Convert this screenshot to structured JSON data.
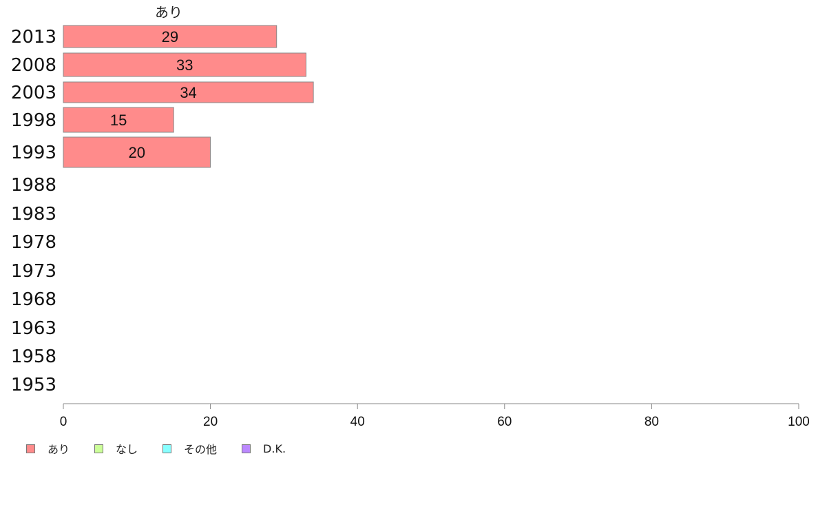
{
  "chart_data": {
    "type": "bar",
    "orientation": "horizontal",
    "categories": [
      "2013",
      "2008",
      "2003",
      "1998",
      "1993",
      "1988",
      "1983",
      "1978",
      "1973",
      "1968",
      "1963",
      "1958",
      "1953"
    ],
    "series": [
      {
        "name": "あり",
        "color": "#ff8b8b",
        "values": [
          29,
          33,
          34,
          15,
          20,
          null,
          null,
          null,
          null,
          null,
          null,
          null,
          null
        ]
      },
      {
        "name": "なし",
        "color": "#ccff99",
        "values": [
          null,
          null,
          null,
          null,
          null,
          null,
          null,
          null,
          null,
          null,
          null,
          null,
          null
        ]
      },
      {
        "name": "その他",
        "color": "#88ffff",
        "values": [
          null,
          null,
          null,
          null,
          null,
          null,
          null,
          null,
          null,
          null,
          null,
          null,
          null
        ]
      },
      {
        "name": "D.K.",
        "color": "#bb88ff",
        "values": [
          null,
          null,
          null,
          null,
          null,
          null,
          null,
          null,
          null,
          null,
          null,
          null,
          null
        ]
      }
    ],
    "column_header": "あり",
    "xlim": [
      0,
      100
    ],
    "xticks": [
      "0",
      "20",
      "40",
      "60",
      "80",
      "100"
    ],
    "legend_position": "bottom-left",
    "grid": false
  }
}
